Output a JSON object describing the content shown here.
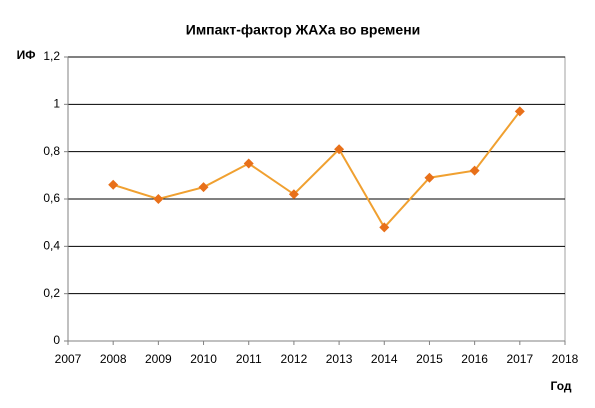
{
  "chart_data": {
    "type": "line",
    "title": "Импакт-фактор ЖАХа во времени",
    "y_label": "ИФ",
    "x_label": "Год",
    "x": [
      2008,
      2009,
      2010,
      2011,
      2012,
      2013,
      2014,
      2015,
      2016,
      2017
    ],
    "series": [
      {
        "name": "ИФ",
        "color": "#f0a030",
        "marker_color": "#e8701a",
        "values": [
          0.66,
          0.6,
          0.65,
          0.75,
          0.62,
          0.81,
          0.48,
          0.69,
          0.72,
          0.97
        ]
      }
    ],
    "xlim": [
      2007,
      2018
    ],
    "xticks": [
      2007,
      2008,
      2009,
      2010,
      2011,
      2012,
      2013,
      2014,
      2015,
      2016,
      2017,
      2018
    ],
    "ylim": [
      0,
      1.2
    ],
    "yticks": [
      0,
      {
        "value": 0.2,
        "label": "0,2"
      },
      {
        "value": 0.4,
        "label": "0,4"
      },
      {
        "value": 0.6,
        "label": "0,6"
      },
      {
        "value": 0.8,
        "label": "0,8"
      },
      1,
      {
        "value": 1.2,
        "label": "1,2"
      }
    ],
    "grid": true
  }
}
